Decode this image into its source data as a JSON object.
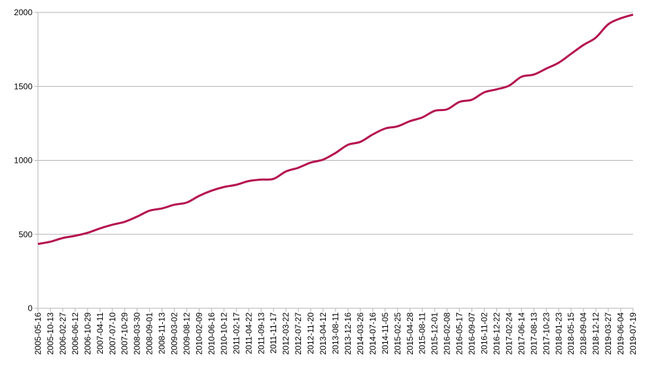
{
  "chart_data": {
    "type": "line",
    "categories": [
      "2005-05-16",
      "2005-10-13",
      "2006-02-27",
      "2006-06-12",
      "2006-10-29",
      "2007-04-11",
      "2007-07-10",
      "2007-10-29",
      "2008-03-30",
      "2008-09-01",
      "2008-11-13",
      "2009-03-02",
      "2009-08-12",
      "2010-02-09",
      "2010-06-16",
      "2010-10-12",
      "2011-02-17",
      "2011-04-22",
      "2011-09-13",
      "2011-11-17",
      "2012-03-22",
      "2012-07-27",
      "2012-11-20",
      "2013-04-12",
      "2013-08-11",
      "2013-12-16",
      "2014-03-26",
      "2014-07-16",
      "2014-11-05",
      "2015-02-25",
      "2015-04-28",
      "2015-08-11",
      "2015-12-01",
      "2016-02-08",
      "2016-05-17",
      "2016-09-07",
      "2016-11-02",
      "2016-12-22",
      "2017-02-24",
      "2017-06-14",
      "2017-08-13",
      "2017-10-23",
      "2018-01-23",
      "2018-05-15",
      "2018-09-04",
      "2018-12-12",
      "2019-03-27",
      "2019-06-04",
      "2019-07-19"
    ],
    "series": [
      {
        "color": "#b5124f",
        "values": [
          435,
          450,
          475,
          490,
          510,
          540,
          565,
          585,
          620,
          660,
          675,
          700,
          715,
          760,
          795,
          820,
          835,
          860,
          870,
          875,
          925,
          950,
          985,
          1005,
          1050,
          1105,
          1125,
          1175,
          1215,
          1230,
          1265,
          1290,
          1335,
          1345,
          1395,
          1410,
          1460,
          1480,
          1505,
          1565,
          1580,
          1620,
          1660,
          1720,
          1780,
          1830,
          1920,
          1960,
          1985
        ]
      }
    ],
    "ylim": [
      0,
      2000
    ],
    "yticks": [
      0,
      500,
      1000,
      1500,
      2000
    ],
    "grid": true
  }
}
